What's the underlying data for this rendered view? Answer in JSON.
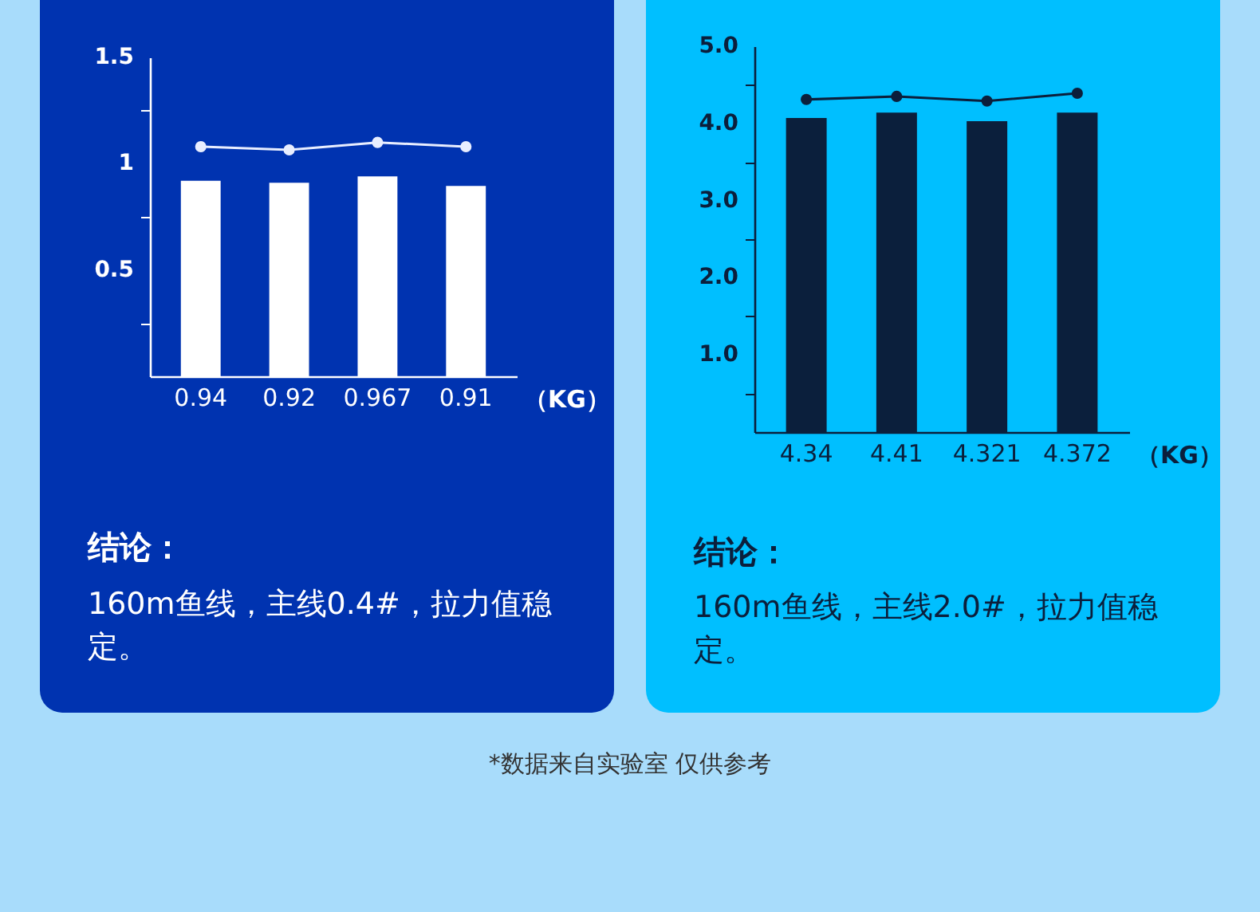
{
  "chart_data": [
    {
      "type": "bar",
      "categories": [
        "0.94",
        "0.92",
        "0.967",
        "0.91"
      ],
      "xlabel": "（KG）",
      "series": [
        {
          "type": "bar",
          "color": "#ffffff",
          "values": [
            0.92,
            0.91,
            0.94,
            0.895
          ]
        },
        {
          "type": "line",
          "color": "#e8eeff",
          "values": [
            1.08,
            1.065,
            1.1,
            1.08
          ]
        }
      ],
      "ylim": [
        0,
        1.5
      ],
      "yticks": [
        {
          "value": 0.25,
          "label": null
        },
        0.5,
        {
          "value": 0.75,
          "label": null
        },
        1,
        {
          "value": 1.25,
          "label": null
        },
        1.5
      ],
      "marker": "circle",
      "annotations": [
        "结论：",
        "160m鱼线，主线0.4#，拉力值稳定。"
      ]
    },
    {
      "type": "bar",
      "categories": [
        "4.34",
        "4.41",
        "4.321",
        "4.372"
      ],
      "xlabel": "（KG）",
      "series": [
        {
          "type": "bar",
          "color": "#0b1f3c",
          "values": [
            4.07,
            4.14,
            4.03,
            4.14
          ]
        },
        {
          "type": "line",
          "color": "#0b1f3c",
          "values": [
            4.31,
            4.35,
            4.29,
            4.39
          ]
        }
      ],
      "ylim": [
        0,
        5
      ],
      "yticks": [
        {
          "value": 0.5,
          "label": null
        },
        {
          "value": 1,
          "label": "1.0"
        },
        {
          "value": 1.5,
          "label": null
        },
        {
          "value": 2,
          "label": "2.0"
        },
        {
          "value": 2.5,
          "label": null
        },
        {
          "value": 3,
          "label": "3.0"
        },
        {
          "value": 3.5,
          "label": null
        },
        {
          "value": 4,
          "label": "4.0"
        },
        {
          "value": 4.5,
          "label": null
        },
        {
          "value": 5,
          "label": "5.0"
        }
      ],
      "marker": "circle",
      "annotations": [
        "结论：",
        "160m鱼线，主线2.0#，拉力值稳定。",
        "*数据来自实验室 仅供参考"
      ]
    }
  ]
}
